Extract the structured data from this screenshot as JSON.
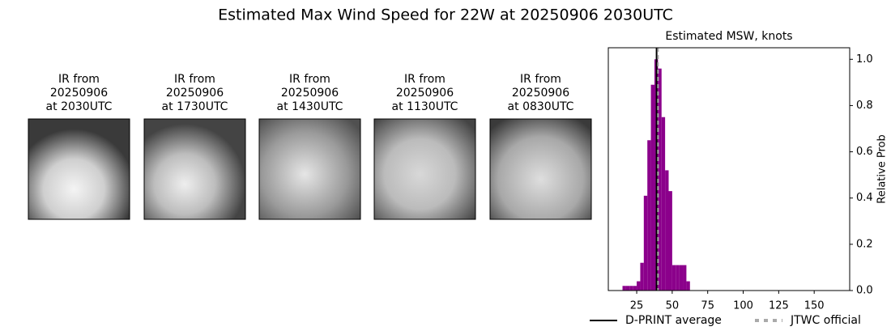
{
  "title": "Estimated Max Wind Speed for 22W at 20250906 2030UTC",
  "images": [
    {
      "lines": [
        "IR from",
        "20250906",
        "at 2030UTC"
      ]
    },
    {
      "lines": [
        "IR from",
        "20250906",
        "at 1730UTC"
      ]
    },
    {
      "lines": [
        "IR from",
        "20250906",
        "at 1430UTC"
      ]
    },
    {
      "lines": [
        "IR from",
        "20250906",
        "at 1130UTC"
      ]
    },
    {
      "lines": [
        "IR from",
        "20250906",
        "at 0830UTC"
      ]
    }
  ],
  "chart_data": {
    "type": "histogram",
    "title": "Estimated MSW, knots",
    "ylabel": "Relative Prob",
    "bins": [
      15,
      17.5,
      20,
      22.5,
      25,
      27.5,
      30,
      32.5,
      35,
      37.5,
      40,
      42.5,
      45,
      47.5,
      50,
      52.5,
      55,
      57.5,
      60,
      62.5
    ],
    "values": [
      0.02,
      0.02,
      0.02,
      0.02,
      0.04,
      0.12,
      0.41,
      0.65,
      0.89,
      1.0,
      0.96,
      0.75,
      0.52,
      0.43,
      0.11,
      0.11,
      0.11,
      0.11,
      0.04
    ],
    "color": "#8b008b",
    "xlim": [
      5,
      175
    ],
    "xticks": [
      25,
      50,
      75,
      100,
      125,
      150
    ],
    "ylim": [
      0,
      1.05
    ],
    "yticks": [
      {
        "value": 0,
        "label": "0.0"
      },
      0.2,
      0.4,
      0.6,
      0.8,
      {
        "value": 1,
        "label": "1.0"
      }
    ],
    "lines": [
      {
        "name": "D-PRINT average",
        "value": 39,
        "color": "#000000",
        "style": "solid"
      },
      {
        "name": "JTWC official",
        "value": 40,
        "color": "#aaaaaa",
        "style": "dashed"
      }
    ]
  }
}
